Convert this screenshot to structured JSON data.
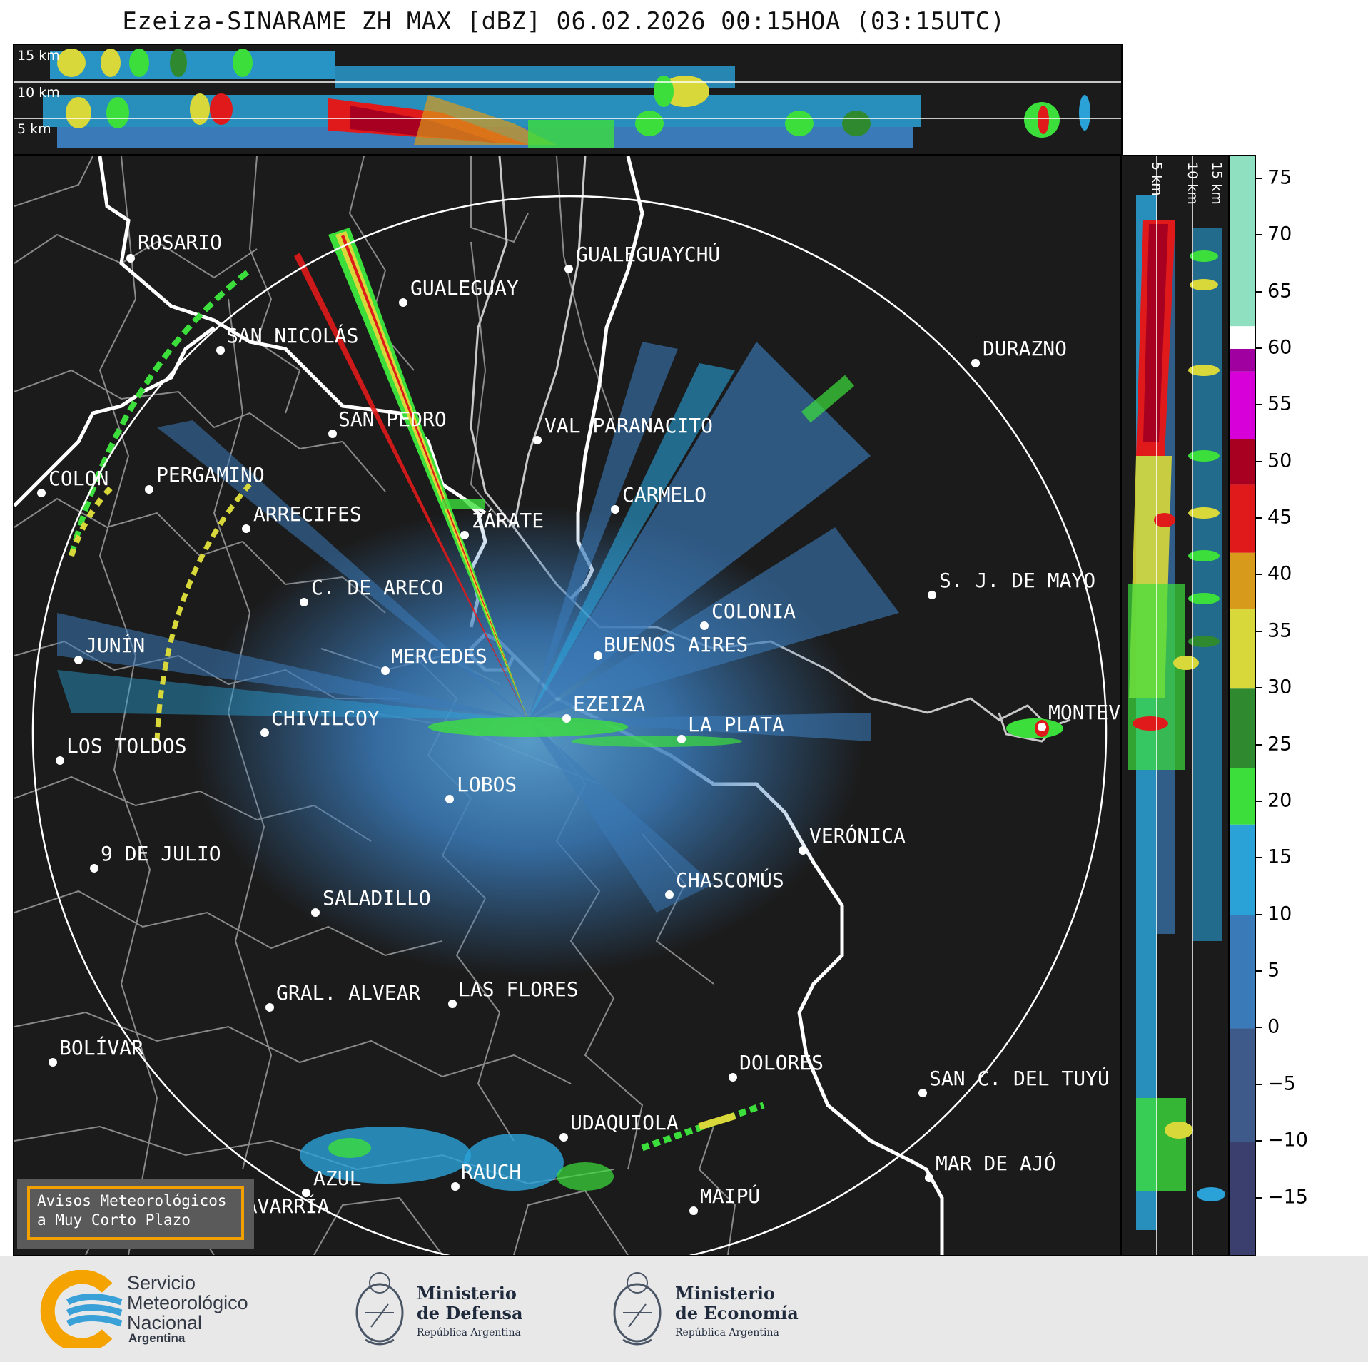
{
  "title": "Ezeiza-SINARAME ZH MAX [dBZ] 06.02.2026 00:15HOA (03:15UTC)",
  "top_panel": {
    "alt_labels": [
      "15 km",
      "10 km",
      "5 km"
    ]
  },
  "side_panel": {
    "alt_labels": [
      "5 km",
      "10 km",
      "15 km"
    ]
  },
  "colorbar": {
    "ticks": [
      "75",
      "70",
      "65",
      "60",
      "55",
      "50",
      "45",
      "40",
      "35",
      "30",
      "25",
      "20",
      "15",
      "10",
      "5",
      "0",
      "−5",
      "−10",
      "−15"
    ],
    "tick_values": [
      75,
      70,
      65,
      60,
      55,
      50,
      45,
      40,
      35,
      30,
      25,
      20,
      15,
      10,
      5,
      0,
      -5,
      -10,
      -15
    ],
    "range": [
      -20,
      77
    ],
    "bands": [
      {
        "from": -20,
        "to": -10,
        "color": "#3b3f6e"
      },
      {
        "from": -10,
        "to": 0,
        "color": "#3d5a8a"
      },
      {
        "from": 0,
        "to": 10,
        "color": "#3a7ab8"
      },
      {
        "from": 10,
        "to": 18,
        "color": "#2aa2d8"
      },
      {
        "from": 18,
        "to": 23,
        "color": "#3cde3c"
      },
      {
        "from": 23,
        "to": 30,
        "color": "#2f8a2f"
      },
      {
        "from": 30,
        "to": 37,
        "color": "#d8d83a"
      },
      {
        "from": 37,
        "to": 42,
        "color": "#d89a1a"
      },
      {
        "from": 42,
        "to": 48,
        "color": "#e01a1a"
      },
      {
        "from": 48,
        "to": 52,
        "color": "#a80020"
      },
      {
        "from": 52,
        "to": 58,
        "color": "#d800d8"
      },
      {
        "from": 58,
        "to": 60,
        "color": "#a000a0"
      },
      {
        "from": 60,
        "to": 62,
        "color": "#ffffff"
      },
      {
        "from": 62,
        "to": 77,
        "color": "#8fe0c0"
      }
    ]
  },
  "cities": [
    {
      "name": "ROSARIO"
    },
    {
      "name": "GUALEGUAYCHÚ"
    },
    {
      "name": "GUALEGUAY"
    },
    {
      "name": "SAN NICOLÁS"
    },
    {
      "name": "DURAZNO"
    },
    {
      "name": "SAN PEDRO"
    },
    {
      "name": "VAL PARANACITO"
    },
    {
      "name": "COLON"
    },
    {
      "name": "PERGAMINO"
    },
    {
      "name": "CARMELO"
    },
    {
      "name": "ARRECIFES"
    },
    {
      "name": "ZÁRATE"
    },
    {
      "name": "S. J. DE MAYO"
    },
    {
      "name": "C. DE ARECO"
    },
    {
      "name": "COLONIA"
    },
    {
      "name": "BUENOS AIRES"
    },
    {
      "name": "JUNÍN"
    },
    {
      "name": "MERCEDES"
    },
    {
      "name": "MONTEVIDEO"
    },
    {
      "name": "EZEIZA"
    },
    {
      "name": "CHIVILCOY"
    },
    {
      "name": "LA PLATA"
    },
    {
      "name": "LOS TOLDOS"
    },
    {
      "name": "LOBOS"
    },
    {
      "name": "VERÓNICA"
    },
    {
      "name": "9 DE JULIO"
    },
    {
      "name": "CHASCOMÚS"
    },
    {
      "name": "SALADILLO"
    },
    {
      "name": "GRAL. ALVEAR"
    },
    {
      "name": "LAS FLORES"
    },
    {
      "name": "BOLÍVAR"
    },
    {
      "name": "DOLORES"
    },
    {
      "name": "SAN C. DEL TUYÚ"
    },
    {
      "name": "UDAQUIOLA"
    },
    {
      "name": "MAR DE AJÓ"
    },
    {
      "name": "RAUCH"
    },
    {
      "name": "AZUL"
    },
    {
      "name": "OLAVARRÍA"
    },
    {
      "name": "MAIPÚ"
    }
  ],
  "notice": {
    "line1": "Avisos Meteorológicos",
    "line2": "a Muy Corto Plazo"
  },
  "footer": {
    "smn": {
      "line1": "Servicio",
      "line2": "Meteorológico",
      "line3": "Nacional",
      "line4": "Argentina"
    },
    "defensa": {
      "line1": "Ministerio",
      "line2": "de Defensa",
      "line3": "República Argentina"
    },
    "economia": {
      "line1": "Ministerio",
      "line2": "de Economía",
      "line3": "República Argentina"
    },
    "colors": {
      "smn_orange": "#f5a300",
      "smn_blue": "#3aa0d8"
    }
  }
}
